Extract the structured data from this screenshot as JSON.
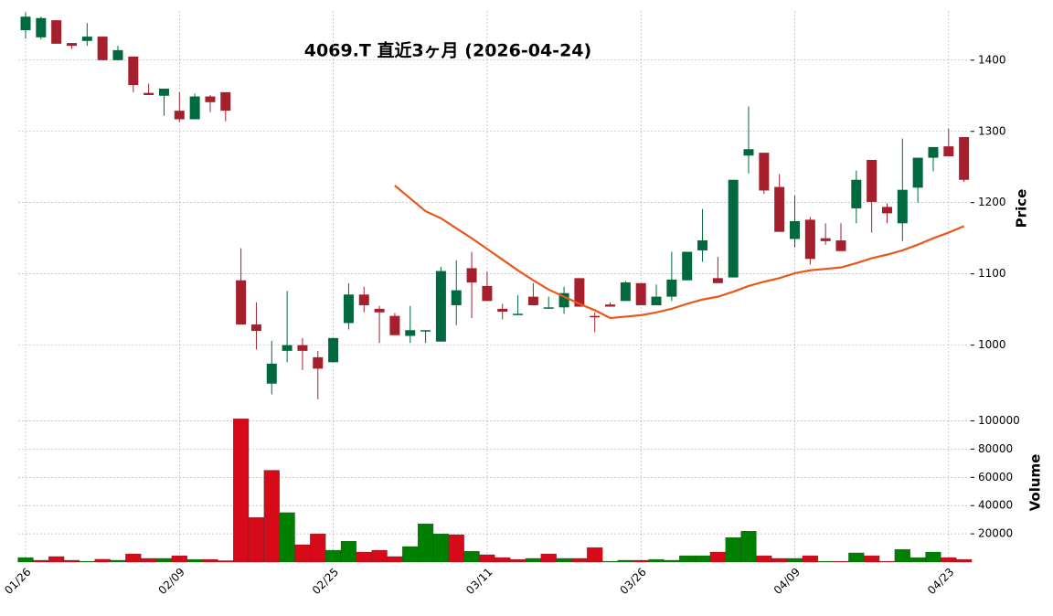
{
  "chart_data": {
    "type": "candlestick",
    "title": "4069.T 直近3ヶ月 (2026-04-24)",
    "categories": [
      "01/26",
      null,
      null,
      null,
      null,
      null,
      null,
      null,
      null,
      null,
      "02/09",
      null,
      null,
      null,
      null,
      null,
      null,
      null,
      null,
      null,
      "02/25",
      null,
      null,
      null,
      null,
      null,
      null,
      null,
      null,
      null,
      "03/11",
      null,
      null,
      null,
      null,
      null,
      null,
      null,
      null,
      null,
      "03/26",
      null,
      null,
      null,
      null,
      null,
      null,
      null,
      null,
      null,
      "04/09",
      null,
      null,
      null,
      null,
      null,
      null,
      null,
      null,
      null,
      "04/23",
      null
    ],
    "open": [
      1442,
      1432,
      1456,
      1424,
      1427,
      1433,
      1400,
      1405,
      1354,
      1350,
      1329,
      1317,
      1349,
      1355,
      1091,
      1029,
      946,
      992,
      1000,
      983,
      976,
      1031,
      1071,
      1051,
      1041,
      1013,
      1020,
      1005,
      1056,
      1108,
      1083,
      1051,
      1043,
      1068,
      1052,
      1053,
      1094,
      1041,
      1057,
      1062,
      1087,
      1056,
      1068,
      1091,
      1133,
      1094,
      1095,
      1266,
      1270,
      1222,
      1149,
      1176,
      1150,
      1147,
      1192,
      1260,
      1194,
      1171,
      1221,
      1263,
      1279,
      1292
    ],
    "high": [
      1467,
      1461,
      1456,
      1424,
      1452,
      1433,
      1420,
      1405,
      1367,
      1360,
      1355,
      1353,
      1351,
      1355,
      1136,
      1060,
      1006,
      1076,
      1010,
      992,
      1010,
      1087,
      1082,
      1055,
      1045,
      1055,
      1021,
      1110,
      1119,
      1131,
      1103,
      1058,
      1070,
      1087,
      1068,
      1082,
      1094,
      1046,
      1060,
      1090,
      1087,
      1085,
      1131,
      1131,
      1191,
      1124,
      1232,
      1335,
      1270,
      1240,
      1210,
      1180,
      1171,
      1171,
      1245,
      1260,
      1199,
      1290,
      1263,
      1278,
      1304,
      1292
    ],
    "low": [
      1430,
      1429,
      1423,
      1416,
      1420,
      1400,
      1400,
      1355,
      1351,
      1322,
      1313,
      1317,
      1327,
      1314,
      1029,
      994,
      931,
      976,
      965,
      924,
      976,
      1022,
      1046,
      1003,
      1014,
      1003,
      1003,
      1005,
      1028,
      1038,
      1062,
      1036,
      1043,
      1056,
      1052,
      1044,
      1054,
      1018,
      1054,
      1062,
      1056,
      1056,
      1062,
      1091,
      1117,
      1087,
      1095,
      1241,
      1212,
      1159,
      1137,
      1113,
      1141,
      1132,
      1171,
      1158,
      1171,
      1146,
      1200,
      1244,
      1265,
      1229
    ],
    "close": [
      1461,
      1459,
      1423,
      1420,
      1433,
      1400,
      1414,
      1365,
      1351,
      1360,
      1317,
      1349,
      1341,
      1329,
      1029,
      1020,
      974,
      1000,
      992,
      967,
      1010,
      1071,
      1056,
      1046,
      1014,
      1021,
      1021,
      1104,
      1077,
      1088,
      1062,
      1047,
      1044,
      1056,
      1053,
      1073,
      1054,
      1039,
      1054,
      1088,
      1056,
      1068,
      1092,
      1131,
      1147,
      1087,
      1232,
      1275,
      1217,
      1159,
      1174,
      1121,
      1146,
      1132,
      1232,
      1201,
      1185,
      1218,
      1263,
      1278,
      1265,
      1232
    ],
    "volume": [
      3200,
      1300,
      3900,
      1300,
      600,
      2000,
      1300,
      5800,
      2600,
      2600,
      4500,
      1900,
      1900,
      1000,
      101500,
      31600,
      65000,
      35000,
      12300,
      20000,
      8400,
      14800,
      7100,
      8400,
      3900,
      11000,
      27100,
      20000,
      19400,
      7700,
      5200,
      3200,
      1900,
      2600,
      5800,
      2600,
      2600,
      10300,
      600,
      1300,
      1300,
      1900,
      1300,
      4500,
      4500,
      7100,
      17400,
      21900,
      4500,
      2600,
      2600,
      4500,
      600,
      600,
      6500,
      4500,
      600,
      9000,
      3200,
      7100,
      3200,
      1900
    ],
    "ma": [
      null,
      null,
      null,
      null,
      null,
      null,
      null,
      null,
      null,
      null,
      null,
      null,
      null,
      null,
      null,
      null,
      null,
      null,
      null,
      null,
      null,
      null,
      null,
      null,
      1224,
      1206,
      1188,
      1178,
      1164,
      1150,
      1135,
      1120,
      1105,
      1091,
      1078,
      1068,
      1058,
      1049,
      1038,
      1040,
      1042,
      1046,
      1051,
      1058,
      1064,
      1068,
      1075,
      1083,
      1089,
      1094,
      1101,
      1105,
      1107,
      1109,
      1115,
      1122,
      1127,
      1133,
      1141,
      1150,
      1158,
      1167
    ],
    "ylim": [
      920,
      1469
    ],
    "yticks": [
      1000,
      1100,
      1200,
      1300,
      1400
    ],
    "ylabel": "Price",
    "volume_ylim": [
      0,
      110000
    ],
    "volume_yticks": [
      20000,
      40000,
      60000,
      80000,
      100000
    ],
    "volume_label": "Volume",
    "up_color": "#00693e",
    "down_color": "#a51f2c",
    "volume_up_color": "#008000",
    "volume_down_color": "#d60a18",
    "ma_color": "#e8581c",
    "grid": true
  }
}
